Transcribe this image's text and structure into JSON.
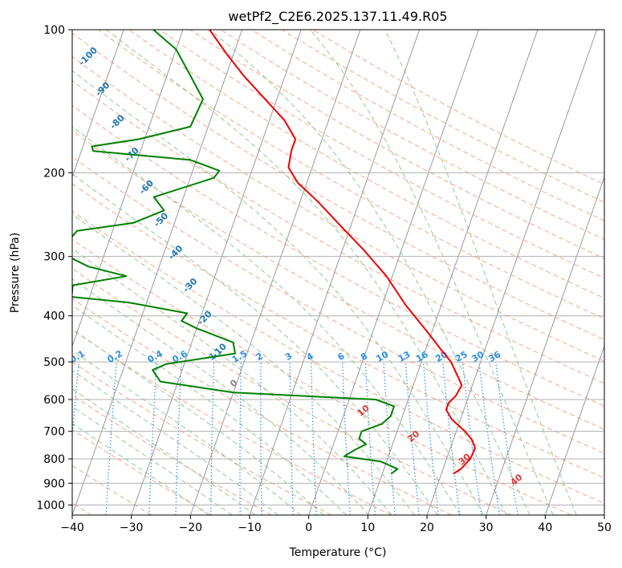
{
  "chart_data": {
    "type": "line",
    "title": "wetPf2_C2E6.2025.137.11.49.R05",
    "xlabel": "Temperature (°C)",
    "ylabel": "Pressure (hPa)",
    "xlim": [
      -40,
      50
    ],
    "ylim": [
      1050,
      100
    ],
    "y_scale": "log",
    "skew": true,
    "grid": true,
    "x_ticks": [
      -40,
      -30,
      -20,
      -10,
      0,
      10,
      20,
      30,
      40,
      50
    ],
    "y_ticks": [
      100,
      200,
      300,
      400,
      500,
      600,
      700,
      800,
      900,
      1000
    ],
    "series": [
      {
        "color": "#ee0000",
        "points": [
          {
            "p": 860,
            "t": 22.0
          },
          {
            "p": 840,
            "t": 23.0
          },
          {
            "p": 800,
            "t": 24.0
          },
          {
            "p": 760,
            "t": 24.2
          },
          {
            "p": 730,
            "t": 23.2
          },
          {
            "p": 700,
            "t": 21.5
          },
          {
            "p": 660,
            "t": 18.5
          },
          {
            "p": 630,
            "t": 17.0
          },
          {
            "p": 610,
            "t": 17.0
          },
          {
            "p": 590,
            "t": 17.8
          },
          {
            "p": 560,
            "t": 18.2
          },
          {
            "p": 540,
            "t": 17.2
          },
          {
            "p": 500,
            "t": 15.0
          },
          {
            "p": 470,
            "t": 12.5
          },
          {
            "p": 430,
            "t": 9.0
          },
          {
            "p": 380,
            "t": 4.0
          },
          {
            "p": 330,
            "t": -1.0
          },
          {
            "p": 290,
            "t": -6.5
          },
          {
            "p": 260,
            "t": -11.5
          },
          {
            "p": 230,
            "t": -17.0
          },
          {
            "p": 210,
            "t": -21.5
          },
          {
            "p": 195,
            "t": -24.0
          },
          {
            "p": 180,
            "t": -24.5
          },
          {
            "p": 170,
            "t": -24.5
          },
          {
            "p": 155,
            "t": -27.5
          },
          {
            "p": 140,
            "t": -32.0
          },
          {
            "p": 125,
            "t": -37.0
          },
          {
            "p": 113,
            "t": -41.0
          },
          {
            "p": 100,
            "t": -45.5
          }
        ]
      },
      {
        "color": "#008000",
        "points": [
          {
            "p": 860,
            "t": 11.5
          },
          {
            "p": 840,
            "t": 12.3
          },
          {
            "p": 810,
            "t": 9.0
          },
          {
            "p": 790,
            "t": 2.5
          },
          {
            "p": 765,
            "t": 4.0
          },
          {
            "p": 745,
            "t": 5.5
          },
          {
            "p": 725,
            "t": 4.0
          },
          {
            "p": 700,
            "t": 4.0
          },
          {
            "p": 675,
            "t": 7.0
          },
          {
            "p": 650,
            "t": 8.0
          },
          {
            "p": 620,
            "t": 8.0
          },
          {
            "p": 600,
            "t": 4.5
          },
          {
            "p": 580,
            "t": -20.0
          },
          {
            "p": 550,
            "t": -33.0
          },
          {
            "p": 520,
            "t": -35.0
          },
          {
            "p": 505,
            "t": -33.0
          },
          {
            "p": 480,
            "t": -22.0
          },
          {
            "p": 455,
            "t": -23.0
          },
          {
            "p": 425,
            "t": -30.0
          },
          {
            "p": 410,
            "t": -33.0
          },
          {
            "p": 395,
            "t": -32.5
          },
          {
            "p": 375,
            "t": -43.0
          },
          {
            "p": 365,
            "t": -53.0
          },
          {
            "p": 345,
            "t": -53.5
          },
          {
            "p": 330,
            "t": -45.0
          },
          {
            "p": 315,
            "t": -52.0
          },
          {
            "p": 300,
            "t": -56.0
          },
          {
            "p": 280,
            "t": -57.0
          },
          {
            "p": 265,
            "t": -56.0
          },
          {
            "p": 255,
            "t": -47.0
          },
          {
            "p": 240,
            "t": -42.5
          },
          {
            "p": 225,
            "t": -45.0
          },
          {
            "p": 205,
            "t": -36.0
          },
          {
            "p": 198,
            "t": -35.5
          },
          {
            "p": 188,
            "t": -41.0
          },
          {
            "p": 180,
            "t": -58.0
          },
          {
            "p": 176,
            "t": -58.5
          },
          {
            "p": 170,
            "t": -51.0
          },
          {
            "p": 160,
            "t": -43.0
          },
          {
            "p": 140,
            "t": -42.5
          },
          {
            "p": 125,
            "t": -46.0
          },
          {
            "p": 110,
            "t": -50.0
          },
          {
            "p": 100,
            "t": -55.0
          }
        ]
      }
    ],
    "mixing_ratio_lines": [
      "0.1",
      "0.2",
      "0.4",
      "0.6",
      "1",
      "1.5",
      "2",
      "3",
      "4",
      "6",
      "8",
      "10",
      "13",
      "16",
      "20",
      "25",
      "30",
      "36"
    ],
    "moist_adiabat_labels": [
      "-100",
      "-90",
      "-80",
      "-70",
      "-60",
      "-50",
      "-40",
      "-30",
      "-20",
      "-10",
      "0"
    ],
    "dry_adiabat_labels": [
      "10",
      "20",
      "30",
      "40"
    ]
  },
  "colors": {
    "temperature": "#ee0000",
    "dewpoint": "#008000",
    "mixing_ratio": "#2b8fe6",
    "dry_adiabat": "#f7a58a",
    "moist_adiabat": "#93c993",
    "isotherm": "#9a9a9a",
    "grid": "#b0b0b0"
  }
}
